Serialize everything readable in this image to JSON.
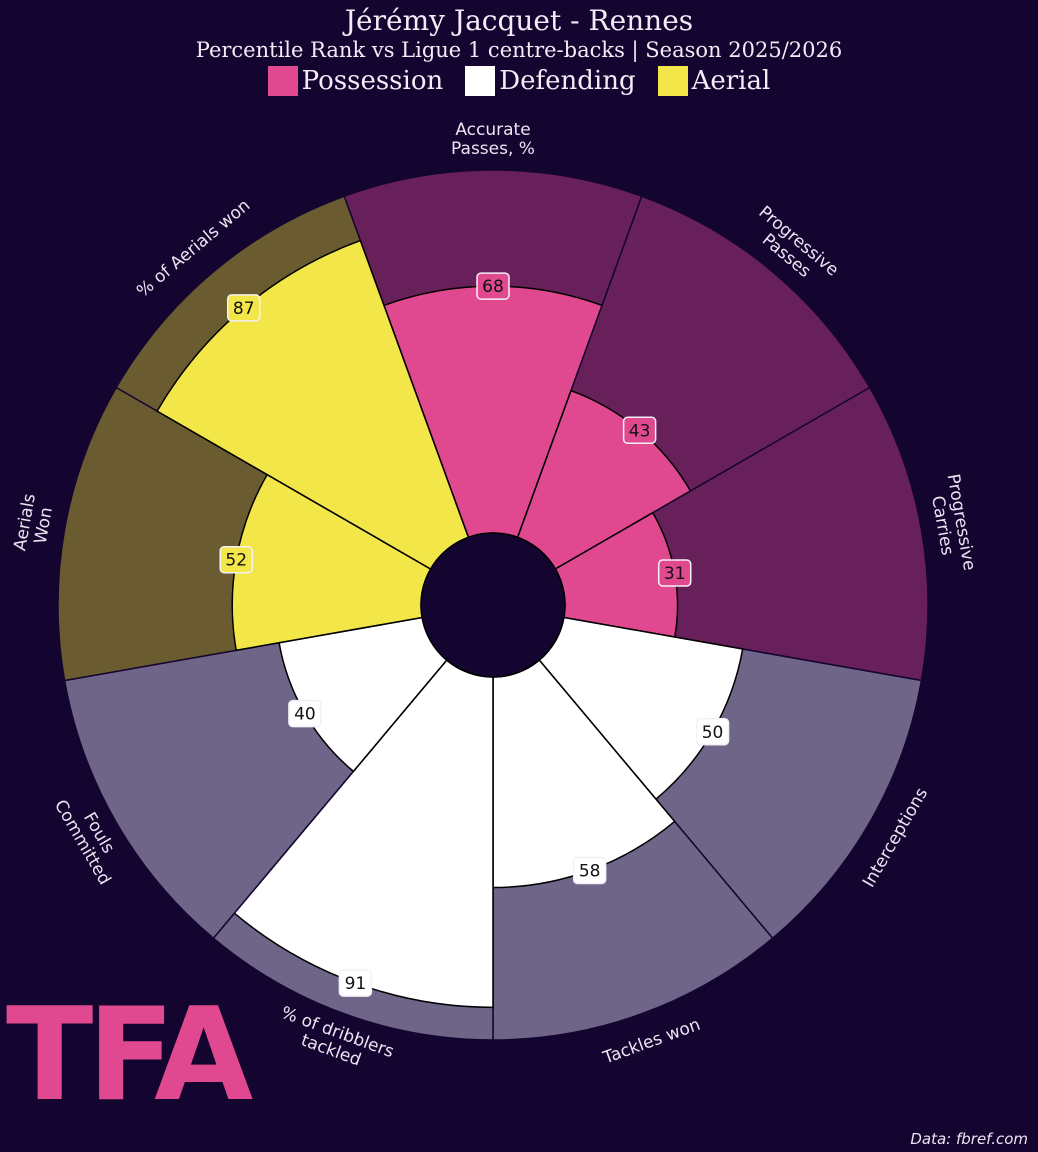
{
  "chart_data": {
    "type": "pizza",
    "title": "Jérémy Jacquet - Rennes",
    "subtitle": "Percentile Rank vs Ligue 1 centre-backs | Season 2025/2026",
    "source": "Data: fbref.com",
    "logo": "TFA",
    "categories": [
      "Accurate\nPasses, %",
      "Progressive\nPasses",
      "Progressive\nCarries",
      "Interceptions",
      "Tackles won",
      "% of dribblers\ntackled",
      "Fouls\nCommitted",
      "Aerials\nWon",
      "% of Aerials won"
    ],
    "series": [
      {
        "name": "Possession",
        "color": "#e0498f",
        "background_color": "#68205a",
        "values": [
          68,
          43,
          31,
          null,
          null,
          null,
          null,
          null,
          null
        ]
      },
      {
        "name": "Defending",
        "color": "#ffffff",
        "background_color": "#6e6588",
        "values": [
          null,
          null,
          null,
          50,
          58,
          91,
          40,
          null,
          null
        ]
      },
      {
        "name": "Aerial",
        "color": "#f2e648",
        "background_color": "#6b5b30",
        "values": [
          null,
          null,
          null,
          null,
          null,
          null,
          null,
          52,
          87
        ]
      }
    ],
    "ylim": [
      0,
      100
    ]
  }
}
